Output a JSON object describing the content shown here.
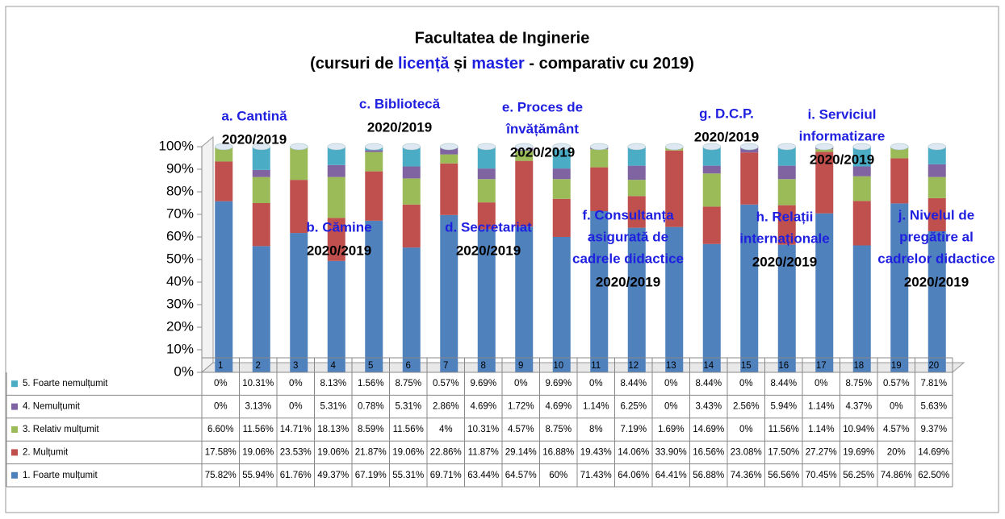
{
  "chart_data": {
    "type": "stacked_percent_bar",
    "title": "Facultatea de Inginerie",
    "subtitle": [
      "(cursuri de ",
      "licență",
      " și ",
      "master",
      " - comparativ cu 2019)"
    ],
    "categories": [
      "1",
      "2",
      "3",
      "4",
      "5",
      "6",
      "7",
      "8",
      "9",
      "10",
      "11",
      "12",
      "13",
      "14",
      "15",
      "16",
      "17",
      "18",
      "19",
      "20"
    ],
    "ylim": [
      0,
      100
    ],
    "yticks": [
      {
        "value": 0,
        "label": "0%"
      },
      {
        "value": 10,
        "label": "10%"
      },
      {
        "value": 20,
        "label": "20%"
      },
      {
        "value": 30,
        "label": "30%"
      },
      {
        "value": 40,
        "label": "40%"
      },
      {
        "value": 50,
        "label": "50%"
      },
      {
        "value": 60,
        "label": "60%"
      },
      {
        "value": 70,
        "label": "70%"
      },
      {
        "value": 80,
        "label": "80%"
      },
      {
        "value": 90,
        "label": "90%"
      },
      {
        "value": 100,
        "label": "100%"
      }
    ],
    "series": [
      {
        "name": "1. Foarte mulțumit",
        "color": "#4f81bd",
        "values": [
          75.82,
          55.94,
          61.76,
          49.37,
          67.19,
          55.31,
          69.71,
          63.44,
          64.57,
          60,
          71.43,
          64.06,
          64.41,
          56.88,
          74.36,
          56.56,
          70.45,
          56.25,
          74.86,
          62.5
        ],
        "value_labels": [
          "75.82%",
          "55.94%",
          "61.76%",
          "49.37%",
          "67.19%",
          "55.31%",
          "69.71%",
          "63.44%",
          "64.57%",
          "60%",
          "71.43%",
          "64.06%",
          "64.41%",
          "56.88%",
          "74.36%",
          "56.56%",
          "70.45%",
          "56.25%",
          "74.86%",
          "62.50%"
        ]
      },
      {
        "name": "2. Mulțumit",
        "color": "#c0504d",
        "values": [
          17.58,
          19.06,
          23.53,
          19.06,
          21.87,
          19.06,
          22.86,
          11.87,
          29.14,
          16.88,
          19.43,
          14.06,
          33.9,
          16.56,
          23.08,
          17.5,
          27.27,
          19.69,
          20,
          14.69
        ],
        "value_labels": [
          "17.58%",
          "19.06%",
          "23.53%",
          "19.06%",
          "21.87%",
          "19.06%",
          "22.86%",
          "11.87%",
          "29.14%",
          "16.88%",
          "19.43%",
          "14.06%",
          "33.90%",
          "16.56%",
          "23.08%",
          "17.50%",
          "27.27%",
          "19.69%",
          "20%",
          "14.69%"
        ]
      },
      {
        "name": "3. Relativ mulțumit",
        "color": "#9bbb59",
        "values": [
          6.6,
          11.56,
          14.71,
          18.13,
          8.59,
          11.56,
          4,
          10.31,
          4.57,
          8.75,
          8,
          7.19,
          1.69,
          14.69,
          0,
          11.56,
          1.14,
          10.94,
          4.57,
          9.37
        ],
        "value_labels": [
          "6.60%",
          "11.56%",
          "14.71%",
          "18.13%",
          "8.59%",
          "11.56%",
          "4%",
          "10.31%",
          "4.57%",
          "8.75%",
          "8%",
          "7.19%",
          "1.69%",
          "14.69%",
          "0%",
          "11.56%",
          "1.14%",
          "10.94%",
          "4.57%",
          "9.37%"
        ]
      },
      {
        "name": "4. Nemulțumit",
        "color": "#8064a2",
        "values": [
          0,
          3.13,
          0,
          5.31,
          0.78,
          5.31,
          2.86,
          4.69,
          1.72,
          4.69,
          1.14,
          6.25,
          0,
          3.43,
          2.56,
          5.94,
          1.14,
          4.37,
          0,
          5.63
        ],
        "value_labels": [
          "0%",
          "3.13%",
          "0%",
          "5.31%",
          "0.78%",
          "5.31%",
          "2.86%",
          "4.69%",
          "1.72%",
          "4.69%",
          "1.14%",
          "6.25%",
          "0%",
          "3.43%",
          "2.56%",
          "5.94%",
          "1.14%",
          "4.37%",
          "0%",
          "5.63%"
        ]
      },
      {
        "name": "5. Foarte nemulțumit",
        "color": "#4bacc6",
        "values": [
          0,
          10.31,
          0,
          8.13,
          1.56,
          8.75,
          0.57,
          9.69,
          0,
          9.69,
          0,
          8.44,
          0,
          8.44,
          0,
          8.44,
          0,
          8.75,
          0.57,
          7.81
        ],
        "value_labels": [
          "0%",
          "10.31%",
          "0%",
          "8.13%",
          "1.56%",
          "8.75%",
          "0.57%",
          "9.69%",
          "0%",
          "9.69%",
          "0%",
          "8.44%",
          "0%",
          "8.44%",
          "0%",
          "8.44%",
          "0%",
          "8.75%",
          "0.57%",
          "7.81%"
        ]
      }
    ],
    "annotations": [
      {
        "lines": [
          "a. Cantină"
        ],
        "period": "2020/2019"
      },
      {
        "lines": [
          "b. Cămine"
        ],
        "period": "2020/2019"
      },
      {
        "lines": [
          "c. Bibliotecă"
        ],
        "period": "2020/2019"
      },
      {
        "lines": [
          "d. Secretariat"
        ],
        "period": "2020/2019"
      },
      {
        "lines": [
          "e. Proces de",
          "învățământ"
        ],
        "period": "2020/2019"
      },
      {
        "lines": [
          "f. Consultanța",
          "asigurată de",
          "cadrele didactice"
        ],
        "period": "2020/2019"
      },
      {
        "lines": [
          "g. D.C.P."
        ],
        "period": "2020/2019"
      },
      {
        "lines": [
          "h. Relații",
          "internaționale"
        ],
        "period": "2020/2019"
      },
      {
        "lines": [
          "i. Serviciul",
          "informatizare"
        ],
        "period": "2020/2019"
      },
      {
        "lines": [
          "j. Nivelul de",
          "pregătire al",
          "cadrelor didactice"
        ],
        "period": "2020/2019"
      }
    ]
  }
}
